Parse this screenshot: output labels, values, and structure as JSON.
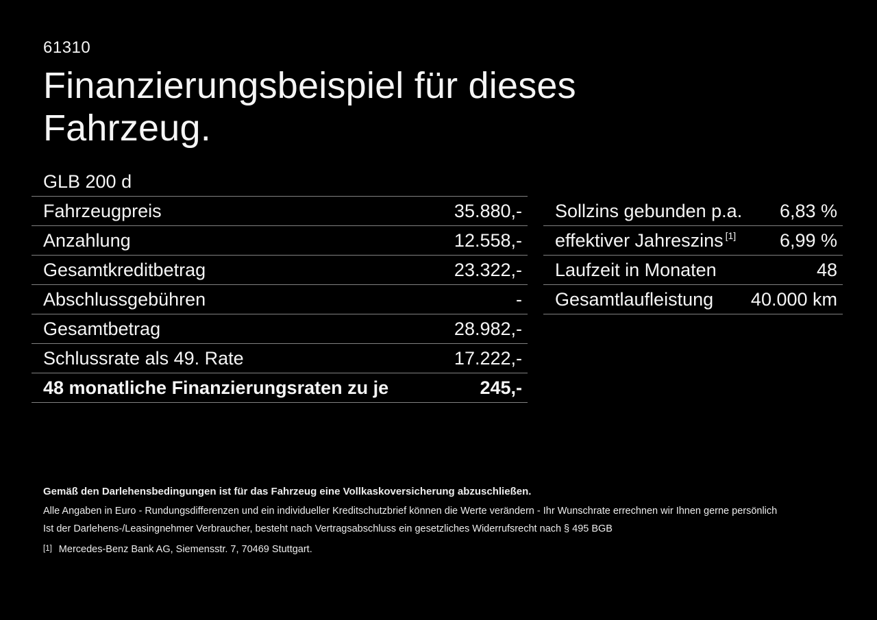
{
  "page": {
    "doc_number": "61310",
    "title_line1": "Finanzierungsbeispiel für dieses",
    "title_line2": "Fahrzeug.",
    "model": "GLB 200 d"
  },
  "left_table": {
    "rows": [
      {
        "label": "Fahrzeugpreis",
        "value": "35.880,-"
      },
      {
        "label": "Anzahlung",
        "value": "12.558,-"
      },
      {
        "label": "Gesamtkreditbetrag",
        "value": "23.322,-"
      },
      {
        "label": "Abschlussgebühren",
        "value": "-"
      },
      {
        "label": "Gesamtbetrag",
        "value": "28.982,-"
      },
      {
        "label": "Schlussrate als 49. Rate",
        "value": "17.222,-"
      },
      {
        "label": "48 monatliche Finanzierungsraten zu je",
        "value": "245,-",
        "emphasis": true
      }
    ]
  },
  "right_table": {
    "rows": [
      {
        "label": "Sollzins gebunden p.a.",
        "value": "6,83 %"
      },
      {
        "label": "effektiver Jahreszins",
        "sup": "[1]",
        "value": "6,99 %"
      },
      {
        "label": "Laufzeit in Monaten",
        "value": "48"
      },
      {
        "label": "Gesamtlaufleistung",
        "value": "40.000 km"
      }
    ]
  },
  "footer": {
    "bold_note": "Gemäß den Darlehensbedingungen ist für das Fahrzeug eine Vollkaskoversicherung abzuschließen.",
    "note_line1": "Alle Angaben in Euro - Rundungsdifferenzen und ein individueller Kreditschutzbrief können die Werte verändern - Ihr Wunschrate errechnen wir Ihnen gerne persönlich",
    "note_line2": "Ist der Darlehens-/Leasingnehmer Verbraucher, besteht nach Vertragsabschluss ein gesetzliches Widerrufsrecht nach § 495 BGB",
    "footnote_marker": "[1]",
    "footnote_text": "Mercedes-Benz Bank AG, Siemensstr. 7, 70469 Stuttgart."
  },
  "colors": {
    "background": "#000000",
    "text": "#f5f5f5",
    "divider": "#828282"
  }
}
